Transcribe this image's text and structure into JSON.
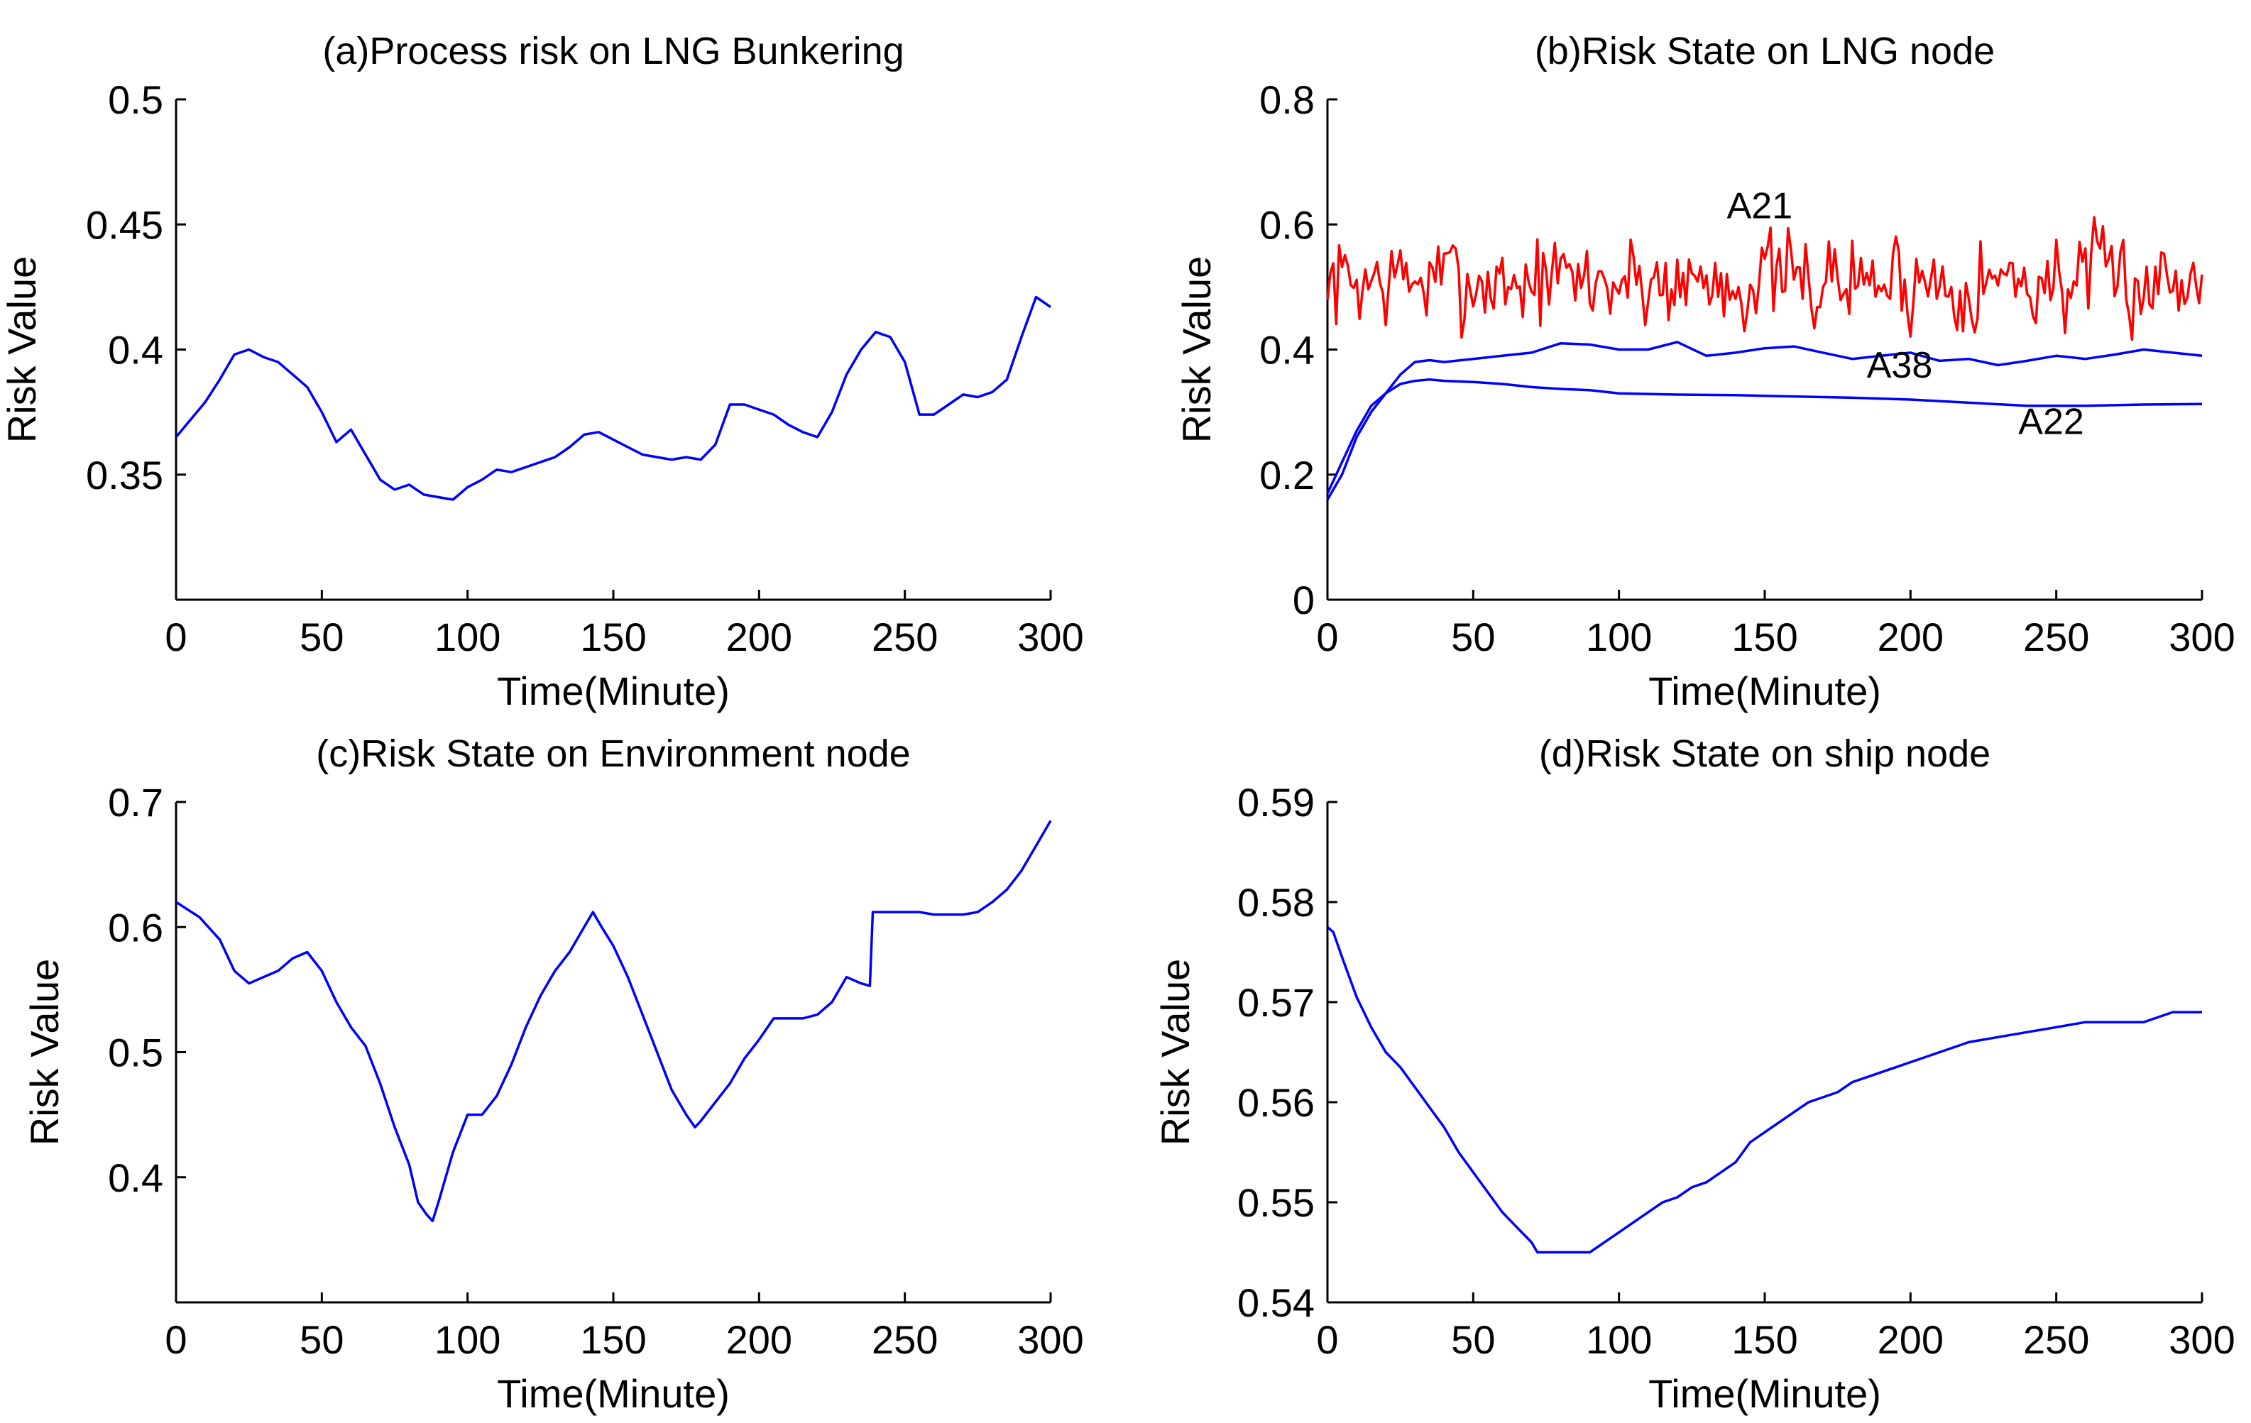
{
  "chart_data": [
    {
      "id": "a",
      "type": "line",
      "title": "(a)Process risk on LNG Bunkering",
      "xlabel": "Time(Minute)",
      "ylabel": "Risk Value",
      "xlim": [
        0,
        300
      ],
      "ylim": [
        0.3,
        0.5
      ],
      "xticks": [
        0,
        50,
        100,
        150,
        200,
        250,
        300
      ],
      "yticks": [
        0.35,
        0.4,
        0.45,
        0.5
      ],
      "ytick_labels": [
        "0.35",
        "0.4",
        "0.45",
        "0.5"
      ],
      "series": [
        {
          "name": "Process risk",
          "color": "#0000ff",
          "x": [
            0,
            5,
            10,
            15,
            20,
            25,
            30,
            35,
            40,
            45,
            50,
            55,
            60,
            65,
            70,
            75,
            80,
            85,
            90,
            95,
            100,
            105,
            110,
            115,
            120,
            125,
            130,
            135,
            140,
            145,
            150,
            155,
            160,
            165,
            170,
            175,
            180,
            185,
            190,
            195,
            200,
            205,
            210,
            215,
            220,
            225,
            230,
            235,
            240,
            245,
            250,
            255,
            260,
            265,
            270,
            275,
            280,
            285,
            290,
            295,
            300
          ],
          "values": [
            0.365,
            0.372,
            0.379,
            0.388,
            0.398,
            0.4,
            0.397,
            0.395,
            0.39,
            0.385,
            0.375,
            0.363,
            0.368,
            0.358,
            0.348,
            0.344,
            0.346,
            0.342,
            0.341,
            0.34,
            0.345,
            0.348,
            0.352,
            0.351,
            0.353,
            0.355,
            0.357,
            0.361,
            0.366,
            0.367,
            0.364,
            0.361,
            0.358,
            0.357,
            0.356,
            0.357,
            0.356,
            0.362,
            0.378,
            0.378,
            0.376,
            0.374,
            0.37,
            0.367,
            0.365,
            0.375,
            0.39,
            0.4,
            0.407,
            0.405,
            0.395,
            0.374,
            0.374,
            0.378,
            0.382,
            0.381,
            0.383,
            0.388,
            0.405,
            0.421,
            0.417
          ]
        }
      ]
    },
    {
      "id": "b",
      "type": "line",
      "title": "(b)Risk State on LNG node",
      "xlabel": "Time(Minute)",
      "ylabel": "Risk Value",
      "xlim": [
        0,
        300
      ],
      "ylim": [
        0,
        0.8
      ],
      "xticks": [
        0,
        50,
        100,
        150,
        200,
        250,
        300
      ],
      "yticks": [
        0,
        0.2,
        0.4,
        0.6,
        0.8
      ],
      "ytick_labels": [
        "0",
        "0.2",
        "0.4",
        "0.6",
        "0.8"
      ],
      "annotations": [
        {
          "text": "A21",
          "x": 137,
          "y": 0.61
        },
        {
          "text": "A38",
          "x": 185,
          "y": 0.355
        },
        {
          "text": "A22",
          "x": 237,
          "y": 0.265
        }
      ],
      "series": [
        {
          "name": "A21",
          "color": "#ff0000",
          "noise": {
            "mean": 0.51,
            "amplitude": 0.07,
            "start_value": 0.48,
            "seed": 7
          },
          "x": [
            0,
            300
          ],
          "values": [
            0.48,
            0.52
          ]
        },
        {
          "name": "A38",
          "color": "#0000ff",
          "x": [
            0,
            5,
            10,
            15,
            20,
            25,
            30,
            35,
            40,
            50,
            60,
            70,
            80,
            90,
            100,
            110,
            120,
            130,
            140,
            150,
            160,
            170,
            180,
            190,
            200,
            210,
            220,
            230,
            240,
            250,
            260,
            270,
            280,
            290,
            300
          ],
          "values": [
            0.16,
            0.2,
            0.26,
            0.3,
            0.33,
            0.36,
            0.38,
            0.383,
            0.38,
            0.385,
            0.39,
            0.395,
            0.41,
            0.408,
            0.4,
            0.4,
            0.412,
            0.39,
            0.395,
            0.402,
            0.405,
            0.395,
            0.385,
            0.39,
            0.395,
            0.382,
            0.385,
            0.375,
            0.382,
            0.39,
            0.385,
            0.392,
            0.4,
            0.395,
            0.39
          ]
        },
        {
          "name": "A22",
          "color": "#0000ff",
          "x": [
            0,
            5,
            10,
            15,
            20,
            25,
            30,
            35,
            40,
            50,
            60,
            70,
            80,
            90,
            100,
            120,
            140,
            160,
            180,
            200,
            220,
            240,
            260,
            280,
            300
          ],
          "values": [
            0.17,
            0.22,
            0.27,
            0.31,
            0.33,
            0.345,
            0.35,
            0.352,
            0.35,
            0.348,
            0.345,
            0.34,
            0.337,
            0.335,
            0.33,
            0.328,
            0.327,
            0.325,
            0.323,
            0.32,
            0.315,
            0.31,
            0.31,
            0.312,
            0.313
          ]
        }
      ]
    },
    {
      "id": "c",
      "type": "line",
      "title": "(c)Risk State on Environment node",
      "xlabel": "Time(Minute)",
      "ylabel": "Risk Value",
      "xlim": [
        0,
        300
      ],
      "ylim": [
        0.3,
        0.7
      ],
      "xticks": [
        0,
        50,
        100,
        150,
        200,
        250,
        300
      ],
      "yticks": [
        0.4,
        0.5,
        0.6,
        0.7
      ],
      "ytick_labels": [
        "0.4",
        "0.5",
        "0.6",
        "0.7"
      ],
      "series": [
        {
          "name": "Environment",
          "color": "#0000ff",
          "x": [
            0,
            8,
            15,
            20,
            25,
            30,
            35,
            40,
            45,
            50,
            55,
            60,
            65,
            70,
            75,
            80,
            83,
            86,
            88,
            90,
            95,
            100,
            105,
            110,
            115,
            120,
            125,
            130,
            135,
            140,
            143,
            146,
            150,
            155,
            160,
            165,
            170,
            175,
            178,
            180,
            185,
            190,
            195,
            200,
            205,
            210,
            215,
            220,
            225,
            230,
            235,
            238,
            239,
            240,
            245,
            250,
            255,
            260,
            265,
            270,
            275,
            280,
            285,
            290,
            295,
            300
          ],
          "values": [
            0.62,
            0.608,
            0.59,
            0.565,
            0.555,
            0.56,
            0.565,
            0.575,
            0.58,
            0.565,
            0.54,
            0.52,
            0.505,
            0.475,
            0.44,
            0.41,
            0.38,
            0.37,
            0.365,
            0.38,
            0.42,
            0.45,
            0.45,
            0.465,
            0.49,
            0.52,
            0.545,
            0.565,
            0.58,
            0.6,
            0.612,
            0.6,
            0.585,
            0.56,
            0.53,
            0.5,
            0.47,
            0.45,
            0.44,
            0.445,
            0.46,
            0.475,
            0.495,
            0.51,
            0.527,
            0.527,
            0.527,
            0.53,
            0.54,
            0.56,
            0.555,
            0.553,
            0.612,
            0.612,
            0.612,
            0.612,
            0.612,
            0.61,
            0.61,
            0.61,
            0.612,
            0.62,
            0.63,
            0.645,
            0.665,
            0.685
          ]
        }
      ]
    },
    {
      "id": "d",
      "type": "line",
      "title": "(d)Risk State on ship node",
      "xlabel": "Time(Minute)",
      "ylabel": "Risk Value",
      "xlim": [
        0,
        300
      ],
      "ylim": [
        0.54,
        0.59
      ],
      "xticks": [
        0,
        50,
        100,
        150,
        200,
        250,
        300
      ],
      "yticks": [
        0.54,
        0.55,
        0.56,
        0.57,
        0.58,
        0.59
      ],
      "ytick_labels": [
        "0.54",
        "0.55",
        "0.56",
        "0.57",
        "0.58",
        "0.59"
      ],
      "series": [
        {
          "name": "Ship",
          "color": "#0000ff",
          "x": [
            0,
            2,
            5,
            10,
            15,
            20,
            25,
            30,
            35,
            40,
            45,
            50,
            55,
            60,
            65,
            70,
            72,
            90,
            95,
            100,
            105,
            110,
            115,
            120,
            125,
            130,
            135,
            140,
            145,
            150,
            155,
            160,
            165,
            170,
            175,
            180,
            185,
            190,
            195,
            200,
            210,
            220,
            230,
            240,
            250,
            260,
            270,
            280,
            285,
            290,
            300
          ],
          "values": [
            0.5775,
            0.577,
            0.5745,
            0.5705,
            0.5675,
            0.565,
            0.5635,
            0.5615,
            0.5595,
            0.5575,
            0.555,
            0.553,
            0.551,
            0.549,
            0.5475,
            0.546,
            0.545,
            0.545,
            0.546,
            0.547,
            0.548,
            0.549,
            0.55,
            0.5505,
            0.5515,
            0.552,
            0.553,
            0.554,
            0.556,
            0.557,
            0.558,
            0.559,
            0.56,
            0.5605,
            0.561,
            0.562,
            0.5625,
            0.563,
            0.5635,
            0.564,
            0.565,
            0.566,
            0.5665,
            0.567,
            0.5675,
            0.568,
            0.568,
            0.568,
            0.5685,
            0.569,
            0.569
          ]
        }
      ]
    }
  ]
}
